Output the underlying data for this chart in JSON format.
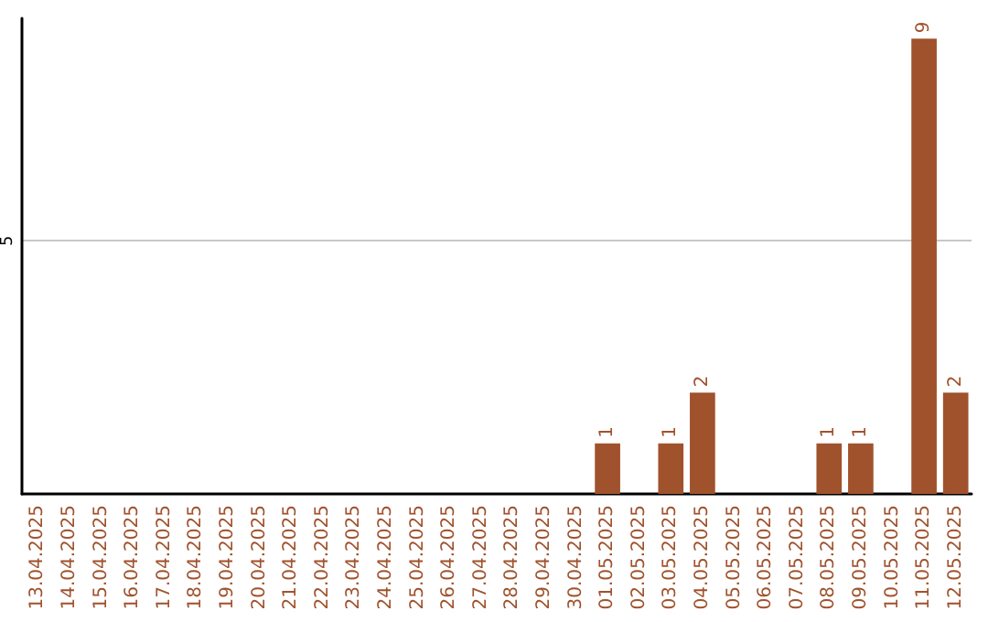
{
  "chart_data": {
    "type": "bar",
    "categories": [
      "13.04.2025",
      "14.04.2025",
      "15.04.2025",
      "16.04.2025",
      "17.04.2025",
      "18.04.2025",
      "19.04.2025",
      "20.04.2025",
      "21.04.2025",
      "22.04.2025",
      "23.04.2025",
      "24.04.2025",
      "25.04.2025",
      "26.04.2025",
      "27.04.2025",
      "28.04.2025",
      "29.04.2025",
      "30.04.2025",
      "01.05.2025",
      "02.05.2025",
      "03.05.2025",
      "04.05.2025",
      "05.05.2025",
      "06.05.2025",
      "07.05.2025",
      "08.05.2025",
      "09.05.2025",
      "10.05.2025",
      "11.05.2025",
      "12.05.2025"
    ],
    "values": [
      null,
      null,
      null,
      null,
      null,
      null,
      null,
      null,
      null,
      null,
      null,
      null,
      null,
      null,
      null,
      null,
      null,
      null,
      1,
      null,
      1,
      2,
      null,
      null,
      null,
      1,
      1,
      null,
      9,
      2
    ],
    "value_labels": [
      null,
      null,
      null,
      null,
      null,
      null,
      null,
      null,
      null,
      null,
      null,
      null,
      null,
      null,
      null,
      null,
      null,
      null,
      "1",
      null,
      "1",
      "2",
      null,
      null,
      null,
      "1",
      "1",
      null,
      "9",
      "2"
    ],
    "color": "#a0522d",
    "ylim": [
      0,
      9.4
    ],
    "yticks": [
      5
    ],
    "grid": "y"
  }
}
